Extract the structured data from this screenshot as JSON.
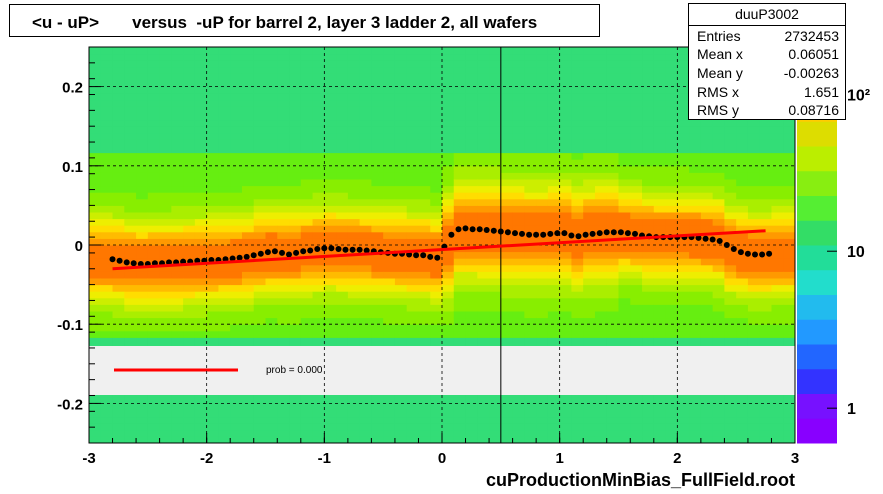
{
  "title": "<u - uP>       versus  -uP for barrel 2, layer 3 ladder 2, all wafers",
  "stats": {
    "name": "duuP3002",
    "rows": [
      {
        "label": "Entries",
        "value": "2732453"
      },
      {
        "label": "Mean x",
        "value": "0.06051"
      },
      {
        "label": "Mean y",
        "value": "-0.00263"
      },
      {
        "label": "RMS x",
        "value": "1.651"
      },
      {
        "label": "RMS y",
        "value": "0.08716"
      }
    ]
  },
  "footer": "cuProductionMinBias_FullField.root",
  "fit_legend": "prob = 0.000",
  "colors": {
    "fit_line": "#ff0000",
    "profile_points": "#000000",
    "legend_box": "#f0f0f0"
  },
  "chart_data": {
    "type": "heatmap",
    "title": "<u - uP>       versus  -uP for barrel 2, layer 3 ladder 2, all wafers",
    "xlim": [
      -3,
      3
    ],
    "ylim": [
      -0.25,
      0.25
    ],
    "x_ticks": [
      -3,
      -2,
      -1,
      0,
      1,
      2,
      3
    ],
    "x_tick_labels": [
      "-3",
      "-2",
      "-1",
      "0",
      "1",
      "2",
      "3"
    ],
    "y_ticks": [
      -0.2,
      -0.1,
      0,
      0.1,
      0.2
    ],
    "y_tick_labels": [
      "-0.2",
      "-0.1",
      "0",
      "0.1",
      "0.2"
    ],
    "z_scale": "log",
    "z_ticks": [
      1,
      10,
      100
    ],
    "z_tick_labels": [
      "1",
      "10",
      "10²"
    ],
    "grid": true,
    "profile": {
      "x": [
        -2.8,
        -2.74,
        -2.68,
        -2.62,
        -2.56,
        -2.5,
        -2.44,
        -2.38,
        -2.32,
        -2.26,
        -2.2,
        -2.14,
        -2.08,
        -2.02,
        -1.96,
        -1.9,
        -1.84,
        -1.78,
        -1.72,
        -1.66,
        -1.6,
        -1.54,
        -1.48,
        -1.42,
        -1.36,
        -1.3,
        -1.24,
        -1.18,
        -1.12,
        -1.06,
        -1.0,
        -0.94,
        -0.88,
        -0.82,
        -0.76,
        -0.7,
        -0.64,
        -0.58,
        -0.52,
        -0.46,
        -0.4,
        -0.34,
        -0.28,
        -0.22,
        -0.16,
        -0.1,
        -0.04,
        0.02,
        0.08,
        0.14,
        0.2,
        0.26,
        0.32,
        0.38,
        0.44,
        0.5,
        0.56,
        0.62,
        0.68,
        0.74,
        0.8,
        0.86,
        0.92,
        0.98,
        1.04,
        1.1,
        1.16,
        1.22,
        1.28,
        1.34,
        1.4,
        1.46,
        1.52,
        1.58,
        1.64,
        1.7,
        1.76,
        1.82,
        1.88,
        1.94,
        2.0,
        2.06,
        2.12,
        2.18,
        2.24,
        2.3,
        2.36,
        2.42,
        2.48,
        2.54,
        2.6,
        2.66,
        2.72,
        2.78
      ],
      "y": [
        -0.018,
        -0.02,
        -0.022,
        -0.023,
        -0.024,
        -0.024,
        -0.023,
        -0.023,
        -0.022,
        -0.022,
        -0.021,
        -0.021,
        -0.02,
        -0.02,
        -0.019,
        -0.019,
        -0.018,
        -0.017,
        -0.016,
        -0.015,
        -0.013,
        -0.011,
        -0.009,
        -0.008,
        -0.01,
        -0.012,
        -0.01,
        -0.008,
        -0.007,
        -0.005,
        -0.004,
        -0.004,
        -0.005,
        -0.006,
        -0.006,
        -0.006,
        -0.007,
        -0.008,
        -0.009,
        -0.01,
        -0.011,
        -0.011,
        -0.012,
        -0.013,
        -0.013,
        -0.015,
        -0.016,
        -0.002,
        0.013,
        0.02,
        0.021,
        0.02,
        0.02,
        0.019,
        0.018,
        0.017,
        0.016,
        0.015,
        0.014,
        0.013,
        0.013,
        0.013,
        0.014,
        0.015,
        0.015,
        0.012,
        0.011,
        0.013,
        0.014,
        0.015,
        0.016,
        0.016,
        0.016,
        0.015,
        0.014,
        0.012,
        0.011,
        0.01,
        0.01,
        0.01,
        0.01,
        0.01,
        0.01,
        0.009,
        0.008,
        0.007,
        0.005,
        0.0,
        -0.005,
        -0.009,
        -0.011,
        -0.012,
        -0.012,
        -0.011
      ]
    },
    "fit_line": {
      "x": [
        -2.8,
        2.75
      ],
      "y": [
        -0.03,
        0.018
      ]
    }
  }
}
